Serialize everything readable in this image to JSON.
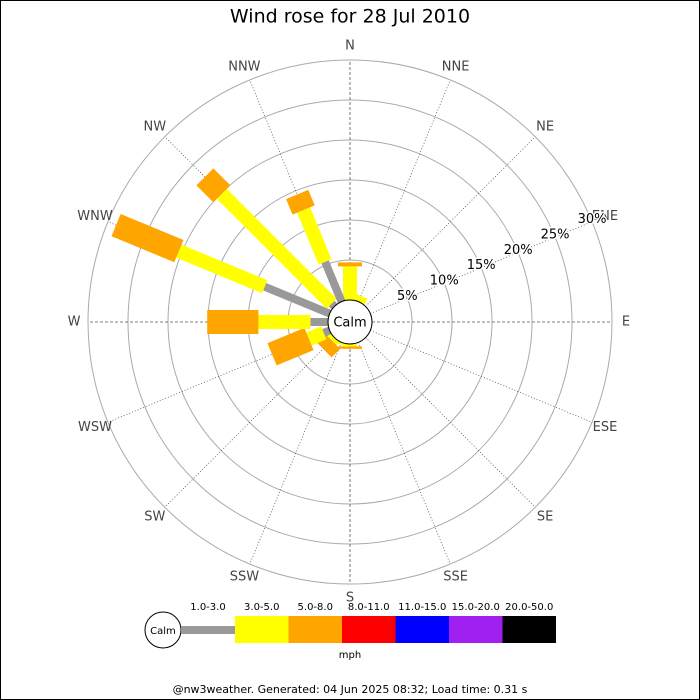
{
  "chart_data": {
    "type": "windrose",
    "title": "Wind rose for 28 Jul 2010",
    "categories": [
      "N",
      "NNE",
      "NE",
      "ENE",
      "E",
      "ESE",
      "SE",
      "SSE",
      "S",
      "SSW",
      "SW",
      "WSW",
      "W",
      "WNW",
      "NW",
      "NNW"
    ],
    "series": [
      {
        "name": "1.0-3.0",
        "color": "#999999",
        "values": [
          0,
          0,
          0,
          0,
          0,
          0,
          0,
          0,
          0,
          0,
          0,
          0.8,
          2.2,
          8.8,
          0.5,
          5.4
        ]
      },
      {
        "name": "3.0-5.0",
        "color": "#ffff00",
        "values": [
          4.2,
          0.8,
          0,
          0,
          0,
          0,
          0,
          0,
          0.3,
          0.3,
          0.5,
          2,
          6.5,
          11.6,
          19.4,
          7
        ]
      },
      {
        "name": "5.0-8.0",
        "color": "#ffa500",
        "values": [
          0.5,
          0,
          0,
          0,
          0,
          0,
          0,
          0,
          0.3,
          0,
          1.5,
          5,
          6.4,
          8.5,
          3,
          2.1
        ]
      },
      {
        "name": "8.0-11.0",
        "color": "#ff0000",
        "values": [
          0,
          0,
          0,
          0,
          0,
          0,
          0,
          0,
          0,
          0,
          0,
          0,
          0,
          0,
          0,
          0
        ]
      },
      {
        "name": "11.0-15.0",
        "color": "#0000ff",
        "values": [
          0,
          0,
          0,
          0,
          0,
          0,
          0,
          0,
          0,
          0,
          0,
          0,
          0,
          0,
          0,
          0
        ]
      },
      {
        "name": "15.0-20.0",
        "color": "#a020f0",
        "values": [
          0,
          0,
          0,
          0,
          0,
          0,
          0,
          0,
          0,
          0,
          0,
          0,
          0,
          0,
          0,
          0
        ]
      },
      {
        "name": "20.0-50.0",
        "color": "#000000",
        "values": [
          0,
          0,
          0,
          0,
          0,
          0,
          0,
          0,
          0,
          0,
          0,
          0,
          0,
          0,
          0,
          0
        ]
      }
    ],
    "rlim": [
      0,
      30
    ],
    "rticks": [
      {
        "value": 5,
        "label": "5%"
      },
      {
        "value": 10,
        "label": "10%"
      },
      {
        "value": 15,
        "label": "15%"
      },
      {
        "value": 20,
        "label": "20%"
      },
      {
        "value": 25,
        "label": "25%"
      },
      {
        "value": 30,
        "label": "30%"
      }
    ],
    "center_label": "Calm",
    "unit": "mph",
    "footer": "@nw3weather. Generated: 04 Jun 2025 08:32; Load time: 0.31 s"
  }
}
